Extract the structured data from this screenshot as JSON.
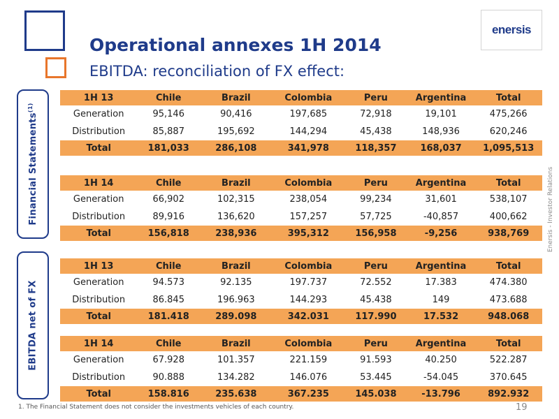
{
  "header": {
    "title": "Operational annexes 1H 2014",
    "subtitle": "EBITDA: reconciliation of FX effect:",
    "logo_text": "enersis"
  },
  "side": {
    "tab1_label": "Financial Statements",
    "tab1_sup": "(1)",
    "tab2_label": "EBITDA net  of  FX",
    "right_label": "Enersis - Investor Relations"
  },
  "tables": [
    {
      "header": [
        "1H 13",
        "Chile",
        "Brazil",
        "Colombia",
        "Peru",
        "Argentina",
        "Total"
      ],
      "rows": [
        [
          "Generation",
          "95,146",
          "90,416",
          "197,685",
          "72,918",
          "19,101",
          "475,266"
        ],
        [
          "Distribution",
          "85,887",
          "195,692",
          "144,294",
          "45,438",
          "148,936",
          "620,246"
        ]
      ],
      "total": [
        "Total",
        "181,033",
        "286,108",
        "341,978",
        "118,357",
        "168,037",
        "1,095,513"
      ]
    },
    {
      "header": [
        "1H 14",
        "Chile",
        "Brazil",
        "Colombia",
        "Peru",
        "Argentina",
        "Total"
      ],
      "rows": [
        [
          "Generation",
          "66,902",
          "102,315",
          "238,054",
          "99,234",
          "31,601",
          "538,107"
        ],
        [
          "Distribution",
          "89,916",
          "136,620",
          "157,257",
          "57,725",
          "-40,857",
          "400,662"
        ]
      ],
      "total": [
        "Total",
        "156,818",
        "238,936",
        "395,312",
        "156,958",
        "-9,256",
        "938,769"
      ]
    },
    {
      "header": [
        "1H 13",
        "Chile",
        "Brazil",
        "Colombia",
        "Peru",
        "Argentina",
        "Total"
      ],
      "rows": [
        [
          "Generation",
          "94.573",
          "92.135",
          "197.737",
          "72.552",
          "17.383",
          "474.380"
        ],
        [
          "Distribution",
          "86.845",
          "196.963",
          "144.293",
          "45.438",
          "149",
          "473.688"
        ]
      ],
      "total": [
        "Total",
        "181.418",
        "289.098",
        "342.031",
        "117.990",
        "17.532",
        "948.068"
      ]
    },
    {
      "header": [
        "1H 14",
        "Chile",
        "Brazil",
        "Colombia",
        "Peru",
        "Argentina",
        "Total"
      ],
      "rows": [
        [
          "Generation",
          "67.928",
          "101.357",
          "221.159",
          "91.593",
          "40.250",
          "522.287"
        ],
        [
          "Distribution",
          "90.888",
          "134.282",
          "146.076",
          "53.445",
          "-54.045",
          "370.645"
        ]
      ],
      "total": [
        "Total",
        "158.816",
        "235.638",
        "367.235",
        "145.038",
        "-13.796",
        "892.932"
      ]
    }
  ],
  "footer": {
    "footnote": "1. The Financial Statement  does not consider the investments vehicles of each country.",
    "page_number": "19"
  },
  "colors": {
    "accent": "#1f3b8a",
    "orange": "#f4a556",
    "square_orange": "#e8762b"
  }
}
